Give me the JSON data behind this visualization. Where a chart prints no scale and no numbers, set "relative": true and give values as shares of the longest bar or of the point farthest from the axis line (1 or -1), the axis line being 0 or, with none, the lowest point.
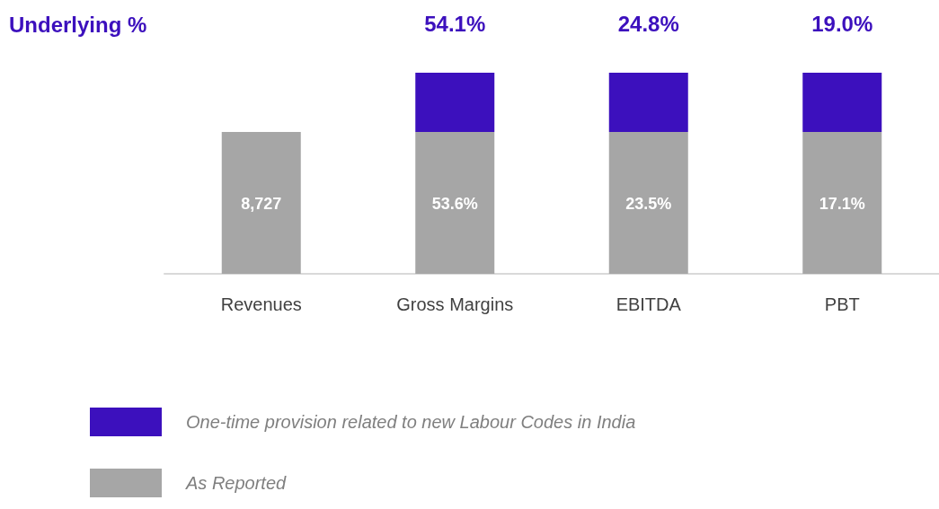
{
  "chart_data": {
    "type": "bar",
    "title": "Underlying %",
    "categories": [
      "Revenues",
      "Gross Margins",
      "EBITDA",
      "PBT"
    ],
    "relative": true,
    "stacked": true,
    "legend": "bottom left",
    "series": [
      {
        "name": "As Reported",
        "color": "#a6a6a6",
        "values": [
          0.705,
          0.705,
          0.705,
          0.705
        ]
      },
      {
        "name": "One-time provision related to new Labour Codes in India",
        "color": "#3c10bd",
        "values": [
          null,
          0.295,
          0.295,
          0.295
        ]
      }
    ],
    "annotations": [
      "8,727",
      "53.6%",
      "23.5%",
      "17.1%",
      "54.1%",
      "24.8%",
      "19.0%"
    ]
  }
}
